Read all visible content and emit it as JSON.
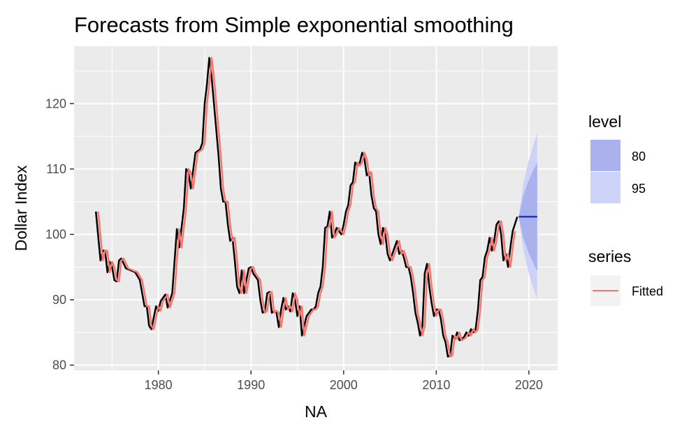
{
  "chart_data": {
    "type": "line",
    "title": "Forecasts from Simple exponential smoothing",
    "xlabel": "NA",
    "ylabel": "Dollar Index",
    "xlim": [
      1970.9,
      2023.1
    ],
    "ylim": [
      79.2,
      128.8
    ],
    "x_ticks": [
      1980,
      1990,
      2000,
      2010,
      2020
    ],
    "y_ticks": [
      80,
      90,
      100,
      110,
      120
    ],
    "grid": true,
    "legend_placement": "right",
    "series": [
      {
        "color": "#000000",
        "points": [
          [
            1973.25,
            103.5
          ],
          [
            1973.75,
            96.0
          ],
          [
            1974.0,
            97.5
          ],
          [
            1974.25,
            97.5
          ],
          [
            1974.5,
            94.2
          ],
          [
            1974.75,
            95.8
          ],
          [
            1975.0,
            95.0
          ],
          [
            1975.25,
            93.0
          ],
          [
            1975.5,
            92.8
          ],
          [
            1975.75,
            96.0
          ],
          [
            1976.0,
            96.3
          ],
          [
            1976.5,
            94.8
          ],
          [
            1977.0,
            94.5
          ],
          [
            1977.5,
            94.2
          ],
          [
            1978.0,
            93.0
          ],
          [
            1978.5,
            89.0
          ],
          [
            1978.75,
            89.0
          ],
          [
            1979.0,
            86.0
          ],
          [
            1979.25,
            85.5
          ],
          [
            1979.75,
            89.0
          ],
          [
            1980.0,
            88.3
          ],
          [
            1980.25,
            89.8
          ],
          [
            1980.75,
            90.8
          ],
          [
            1981.0,
            88.8
          ],
          [
            1981.5,
            91.0
          ],
          [
            1982.0,
            100.8
          ],
          [
            1982.25,
            98.0
          ],
          [
            1982.5,
            101.0
          ],
          [
            1982.75,
            104.0
          ],
          [
            1983.0,
            110.0
          ],
          [
            1983.25,
            109.5
          ],
          [
            1983.5,
            107.0
          ],
          [
            1984.0,
            112.5
          ],
          [
            1984.5,
            113.0
          ],
          [
            1984.75,
            114.0
          ],
          [
            1985.0,
            120.0
          ],
          [
            1985.25,
            123.0
          ],
          [
            1985.5,
            127.0
          ],
          [
            1985.75,
            124.0
          ],
          [
            1986.0,
            120.0
          ],
          [
            1986.5,
            112.0
          ],
          [
            1986.75,
            107.0
          ],
          [
            1987.0,
            105.0
          ],
          [
            1987.25,
            105.0
          ],
          [
            1987.5,
            101.5
          ],
          [
            1987.75,
            99.0
          ],
          [
            1988.0,
            99.5
          ],
          [
            1988.25,
            96.0
          ],
          [
            1988.5,
            92.0
          ],
          [
            1988.75,
            91.0
          ],
          [
            1989.0,
            94.5
          ],
          [
            1989.25,
            91.0
          ],
          [
            1989.5,
            93.0
          ],
          [
            1989.75,
            94.8
          ],
          [
            1990.0,
            95.0
          ],
          [
            1990.25,
            94.0
          ],
          [
            1990.5,
            93.5
          ],
          [
            1990.75,
            93.0
          ],
          [
            1991.0,
            90.0
          ],
          [
            1991.25,
            88.0
          ],
          [
            1991.5,
            88.3
          ],
          [
            1991.75,
            91.0
          ],
          [
            1992.0,
            91.2
          ],
          [
            1992.25,
            88.0
          ],
          [
            1992.5,
            88.3
          ],
          [
            1992.75,
            88.0
          ],
          [
            1993.0,
            85.8
          ],
          [
            1993.25,
            88.5
          ],
          [
            1993.5,
            90.3
          ],
          [
            1993.75,
            88.5
          ],
          [
            1994.0,
            89.0
          ],
          [
            1994.25,
            88.2
          ],
          [
            1994.5,
            91.0
          ],
          [
            1994.75,
            90.0
          ],
          [
            1995.0,
            87.5
          ],
          [
            1995.25,
            89.0
          ],
          [
            1995.5,
            84.5
          ],
          [
            1995.75,
            86.0
          ],
          [
            1996.0,
            87.5
          ],
          [
            1996.25,
            88.0
          ],
          [
            1996.5,
            88.5
          ],
          [
            1996.75,
            88.5
          ],
          [
            1997.0,
            89.0
          ],
          [
            1997.25,
            91.0
          ],
          [
            1997.5,
            92.0
          ],
          [
            1997.75,
            95.0
          ],
          [
            1998.0,
            101.0
          ],
          [
            1998.25,
            101.2
          ],
          [
            1998.5,
            103.5
          ],
          [
            1998.75,
            99.5
          ],
          [
            1999.0,
            100.0
          ],
          [
            1999.25,
            101.0
          ],
          [
            1999.5,
            100.5
          ],
          [
            1999.75,
            100.0
          ],
          [
            2000.0,
            101.5
          ],
          [
            2000.25,
            103.5
          ],
          [
            2000.5,
            104.5
          ],
          [
            2000.75,
            107.5
          ],
          [
            2001.0,
            108.0
          ],
          [
            2001.25,
            111.0
          ],
          [
            2001.5,
            110.5
          ],
          [
            2001.75,
            111.0
          ],
          [
            2002.0,
            112.5
          ],
          [
            2002.25,
            111.5
          ],
          [
            2002.5,
            109.0
          ],
          [
            2002.75,
            109.5
          ],
          [
            2003.0,
            106.0
          ],
          [
            2003.25,
            104.0
          ],
          [
            2003.5,
            103.5
          ],
          [
            2003.75,
            100.0
          ],
          [
            2004.0,
            98.5
          ],
          [
            2004.25,
            101.0
          ],
          [
            2004.5,
            100.0
          ],
          [
            2004.75,
            97.0
          ],
          [
            2005.0,
            96.0
          ],
          [
            2005.25,
            97.0
          ],
          [
            2005.5,
            98.0
          ],
          [
            2005.75,
            99.0
          ],
          [
            2006.0,
            97.0
          ],
          [
            2006.25,
            97.5
          ],
          [
            2006.5,
            96.5
          ],
          [
            2006.75,
            95.0
          ],
          [
            2007.0,
            95.0
          ],
          [
            2007.25,
            93.5
          ],
          [
            2007.5,
            91.0
          ],
          [
            2007.75,
            88.0
          ],
          [
            2008.0,
            86.5
          ],
          [
            2008.25,
            84.5
          ],
          [
            2008.5,
            86.0
          ],
          [
            2008.75,
            94.0
          ],
          [
            2009.0,
            95.5
          ],
          [
            2009.25,
            92.0
          ],
          [
            2009.5,
            89.5
          ],
          [
            2009.75,
            87.5
          ],
          [
            2010.0,
            88.5
          ],
          [
            2010.25,
            88.5
          ],
          [
            2010.5,
            87.0
          ],
          [
            2010.75,
            84.5
          ],
          [
            2011.0,
            83.5
          ],
          [
            2011.25,
            81.3
          ],
          [
            2011.5,
            81.5
          ],
          [
            2011.75,
            84.5
          ],
          [
            2012.0,
            84.0
          ],
          [
            2012.25,
            85.0
          ],
          [
            2012.5,
            83.8
          ],
          [
            2012.75,
            84.0
          ],
          [
            2013.0,
            84.3
          ],
          [
            2013.25,
            85.0
          ],
          [
            2013.5,
            84.5
          ],
          [
            2013.75,
            85.5
          ],
          [
            2014.0,
            85.0
          ],
          [
            2014.25,
            85.5
          ],
          [
            2014.5,
            88.5
          ],
          [
            2014.75,
            93.0
          ],
          [
            2015.0,
            93.5
          ],
          [
            2015.25,
            96.5
          ],
          [
            2015.5,
            97.5
          ],
          [
            2015.75,
            99.5
          ],
          [
            2016.0,
            97.5
          ],
          [
            2016.25,
            99.0
          ],
          [
            2016.5,
            101.5
          ],
          [
            2016.75,
            102.0
          ],
          [
            2017.0,
            100.0
          ],
          [
            2017.25,
            96.0
          ],
          [
            2017.5,
            97.0
          ],
          [
            2017.75,
            95.0
          ],
          [
            2018.0,
            98.0
          ],
          [
            2018.25,
            100.5
          ],
          [
            2018.75,
            102.7
          ]
        ]
      },
      {
        "name": "Fitted",
        "color": "#f8766d",
        "lag": 0.25
      }
    ],
    "forecast": {
      "x": [
        2018.9,
        2019.4,
        2019.9,
        2020.4,
        2020.9
      ],
      "point": 102.7,
      "color": "#1f2fc8",
      "bands": [
        {
          "level": "80",
          "color": "#aab2ee",
          "lower": [
            102.7,
            99.4,
            97.4,
            95.8,
            94.4
          ],
          "upper": [
            102.7,
            106.0,
            108.0,
            109.6,
            111.0
          ]
        },
        {
          "level": "95",
          "color": "#cdd3f8",
          "lower": [
            102.7,
            97.6,
            94.5,
            92.1,
            90.0
          ],
          "upper": [
            102.7,
            107.8,
            110.9,
            113.3,
            115.4
          ]
        }
      ]
    },
    "legend": {
      "level": {
        "title": "level",
        "items": [
          "80",
          "95"
        ]
      },
      "series": {
        "title": "series",
        "items": [
          "Fitted"
        ]
      }
    }
  }
}
